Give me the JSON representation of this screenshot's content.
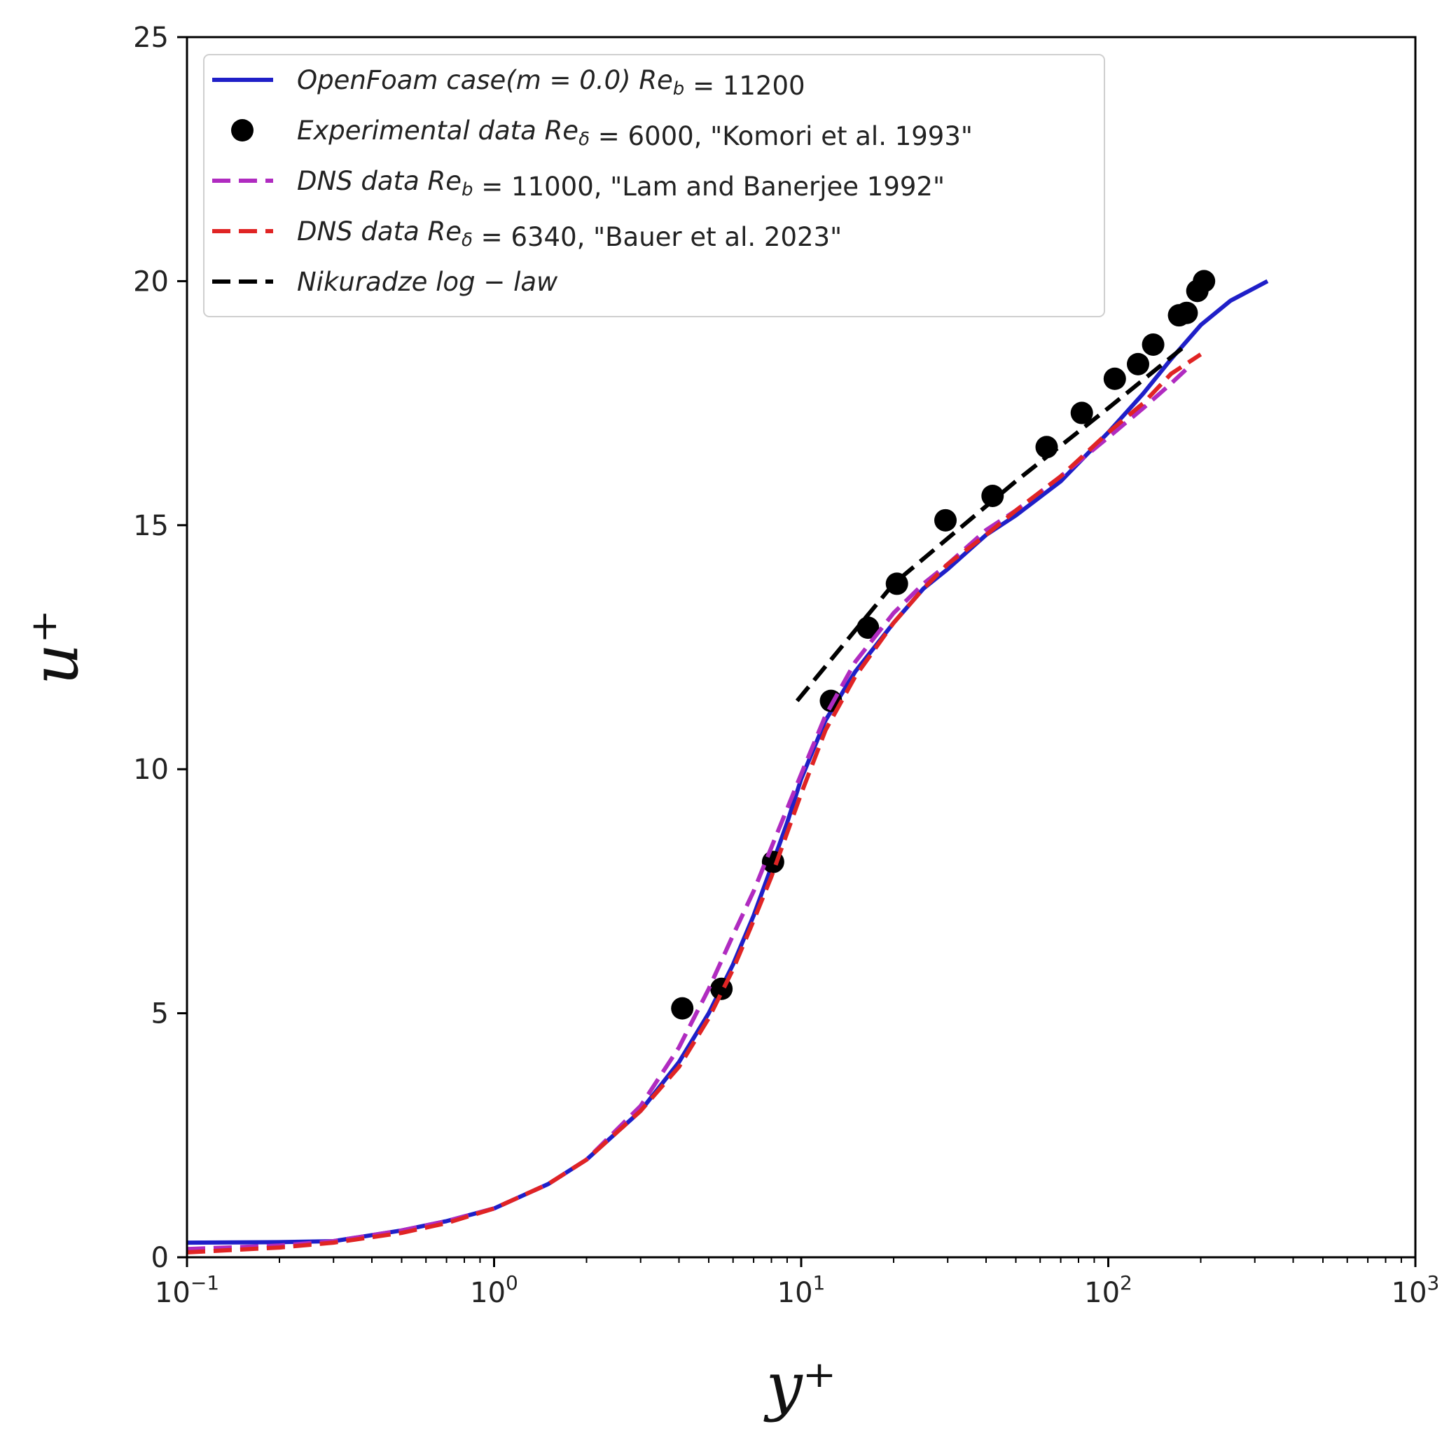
{
  "chart_data": {
    "type": "line",
    "x_scale": "log",
    "xlim": [
      0.1,
      1000
    ],
    "ylim": [
      0,
      25
    ],
    "xlabel": "y⁺",
    "ylabel": "u⁺",
    "x_ticks": [
      {
        "value": 0.1,
        "base": "10",
        "exp": "−1"
      },
      {
        "value": 1,
        "base": "10",
        "exp": "0"
      },
      {
        "value": 10,
        "base": "10",
        "exp": "1"
      },
      {
        "value": 100,
        "base": "10",
        "exp": "2"
      },
      {
        "value": 1000,
        "base": "10",
        "exp": "3"
      }
    ],
    "y_ticks": [
      "0",
      "5",
      "10",
      "15",
      "20",
      "25"
    ],
    "grid": false,
    "legend_position": "top-left",
    "series": [
      {
        "name": "OpenFoam case(m = 0.0)  Re_b = 11200",
        "legend_parts": [
          {
            "t": "OpenFoam case(m = 0.0)  Re",
            "it": true
          },
          {
            "t": "b",
            "it": true,
            "sub": true
          },
          {
            "t": " = 11200",
            "it": false
          }
        ],
        "color": "#1f1fc8",
        "style": "solid",
        "points": [
          [
            0.1,
            0.3
          ],
          [
            0.2,
            0.31
          ],
          [
            0.3,
            0.33
          ],
          [
            0.5,
            0.55
          ],
          [
            0.7,
            0.74
          ],
          [
            1,
            1.0
          ],
          [
            1.5,
            1.5
          ],
          [
            2,
            2.0
          ],
          [
            3,
            3.0
          ],
          [
            4,
            4.0
          ],
          [
            5,
            5.0
          ],
          [
            6,
            6.0
          ],
          [
            7,
            7.0
          ],
          [
            8,
            8.0
          ],
          [
            9,
            8.9
          ],
          [
            10,
            9.8
          ],
          [
            12,
            11.0
          ],
          [
            15,
            12.0
          ],
          [
            20,
            13.0
          ],
          [
            25,
            13.7
          ],
          [
            30,
            14.1
          ],
          [
            40,
            14.8
          ],
          [
            50,
            15.2
          ],
          [
            70,
            15.9
          ],
          [
            100,
            16.9
          ],
          [
            130,
            17.7
          ],
          [
            160,
            18.4
          ],
          [
            200,
            19.1
          ],
          [
            250,
            19.6
          ],
          [
            330,
            20.0
          ]
        ]
      },
      {
        "name": "Experimental data Re_δ = 6000,   \"Komori et al. 1993\"",
        "legend_parts": [
          {
            "t": "Experimental data Re",
            "it": true
          },
          {
            "t": "δ",
            "it": true,
            "sub": true
          },
          {
            "t": " = 6000,   \"Komori et al. 1993\"",
            "it": false
          }
        ],
        "color": "#000000",
        "style": "markers",
        "points": [
          [
            4.1,
            5.1
          ],
          [
            5.5,
            5.5
          ],
          [
            8.1,
            8.1
          ],
          [
            12.5,
            11.4
          ],
          [
            16.5,
            12.9
          ],
          [
            20.5,
            13.8
          ],
          [
            29.5,
            15.1
          ],
          [
            42,
            15.6
          ],
          [
            63,
            16.6
          ],
          [
            82,
            17.3
          ],
          [
            105,
            18.0
          ],
          [
            125,
            18.3
          ],
          [
            140,
            18.7
          ],
          [
            170,
            19.3
          ],
          [
            180,
            19.35
          ],
          [
            195,
            19.8
          ],
          [
            205,
            20.0
          ]
        ]
      },
      {
        "name": "DNS data Re_b = 11000,   \"Lam and Banerjee 1992\"",
        "legend_parts": [
          {
            "t": "DNS data Re",
            "it": true
          },
          {
            "t": "b",
            "it": true,
            "sub": true
          },
          {
            "t": " = 11000,   \"Lam and Banerjee 1992\"",
            "it": false
          }
        ],
        "color": "#b02bc0",
        "style": "dashed",
        "points": [
          [
            0.1,
            0.17
          ],
          [
            0.2,
            0.24
          ],
          [
            0.3,
            0.33
          ],
          [
            0.5,
            0.55
          ],
          [
            0.7,
            0.74
          ],
          [
            1,
            1.0
          ],
          [
            1.5,
            1.5
          ],
          [
            2,
            2.0
          ],
          [
            3,
            3.1
          ],
          [
            4,
            4.3
          ],
          [
            5,
            5.5
          ],
          [
            6,
            6.6
          ],
          [
            7,
            7.5
          ],
          [
            8,
            8.4
          ],
          [
            10,
            9.9
          ],
          [
            12,
            11.1
          ],
          [
            15,
            12.2
          ],
          [
            20,
            13.2
          ],
          [
            25,
            13.8
          ],
          [
            30,
            14.2
          ],
          [
            40,
            14.9
          ],
          [
            50,
            15.3
          ],
          [
            70,
            16.0
          ],
          [
            100,
            16.8
          ],
          [
            130,
            17.4
          ],
          [
            160,
            17.9
          ],
          [
            180,
            18.2
          ]
        ]
      },
      {
        "name": "DNS data Re_δ = 6340,   \"Bauer et al. 2023\"",
        "legend_parts": [
          {
            "t": "DNS data Re",
            "it": true
          },
          {
            "t": "δ",
            "it": true,
            "sub": true
          },
          {
            "t": " = 6340,   \"Bauer et al. 2023\"",
            "it": false
          }
        ],
        "color": "#e02424",
        "style": "dashed",
        "points": [
          [
            0.1,
            0.1
          ],
          [
            0.2,
            0.2
          ],
          [
            0.3,
            0.3
          ],
          [
            0.5,
            0.5
          ],
          [
            0.7,
            0.7
          ],
          [
            1,
            1.0
          ],
          [
            1.5,
            1.5
          ],
          [
            2,
            2.0
          ],
          [
            3,
            3.0
          ],
          [
            4,
            3.9
          ],
          [
            5,
            4.9
          ],
          [
            6,
            5.9
          ],
          [
            7,
            6.9
          ],
          [
            8,
            7.8
          ],
          [
            10,
            9.5
          ],
          [
            12,
            10.8
          ],
          [
            15,
            11.9
          ],
          [
            20,
            13.0
          ],
          [
            25,
            13.7
          ],
          [
            30,
            14.2
          ],
          [
            40,
            14.8
          ],
          [
            50,
            15.3
          ],
          [
            70,
            16.0
          ],
          [
            100,
            16.9
          ],
          [
            130,
            17.5
          ],
          [
            160,
            18.1
          ],
          [
            200,
            18.5
          ]
        ]
      },
      {
        "name": "Nikuradze log − law",
        "legend_parts": [
          {
            "t": "Nikuradze log − law",
            "it": true
          }
        ],
        "color": "#000000",
        "style": "dashed",
        "points": [
          [
            9.7,
            11.4
          ],
          [
            20,
            13.8
          ],
          [
            50,
            15.9
          ],
          [
            100,
            17.4
          ],
          [
            180,
            18.7
          ]
        ]
      }
    ]
  }
}
